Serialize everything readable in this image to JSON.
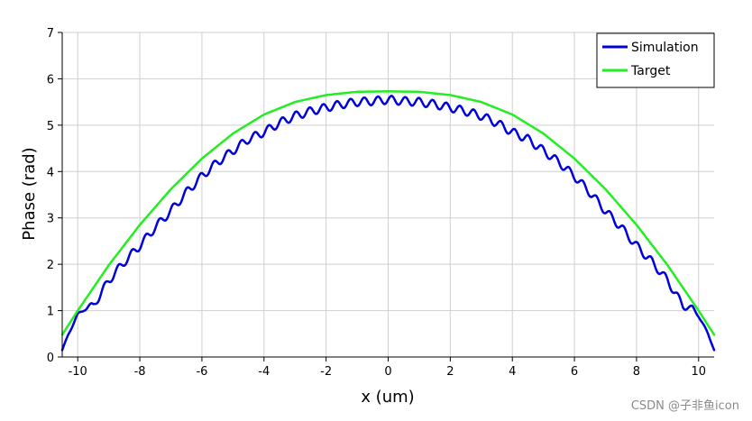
{
  "chart_data": {
    "type": "line",
    "xlabel": "x (um)",
    "ylabel": "Phase (rad)",
    "xlim": [
      -10.5,
      10.5
    ],
    "ylim": [
      0,
      7
    ],
    "xticks": [
      -10,
      -8,
      -6,
      -4,
      -2,
      0,
      2,
      4,
      6,
      8,
      10
    ],
    "yticks": [
      0,
      1,
      2,
      3,
      4,
      5,
      6,
      7
    ],
    "grid": true,
    "legend_position": "top-right",
    "series": [
      {
        "name": "Simulation",
        "color": "#0000dd",
        "x": [
          -10.5,
          -10.3,
          -10.0,
          -9.8,
          -9.5,
          -9.0,
          -8.5,
          -8.0,
          -7.5,
          -7.0,
          -6.5,
          -6.0,
          -5.5,
          -5.0,
          -4.5,
          -4.0,
          -3.5,
          -3.0,
          -2.5,
          -2.0,
          -1.5,
          -1.0,
          -0.5,
          0.0,
          0.5,
          1.0,
          1.5,
          2.0,
          2.5,
          3.0,
          3.5,
          4.0,
          4.5,
          5.0,
          5.5,
          6.0,
          6.5,
          7.0,
          7.5,
          8.0,
          8.5,
          9.0,
          9.5,
          9.8,
          10.0,
          10.3,
          10.5
        ],
        "y": [
          0.15,
          0.5,
          0.9,
          1.05,
          1.1,
          1.65,
          2.05,
          2.4,
          2.8,
          3.15,
          3.55,
          3.9,
          4.2,
          4.45,
          4.7,
          4.85,
          5.05,
          5.2,
          5.3,
          5.38,
          5.45,
          5.5,
          5.52,
          5.55,
          5.52,
          5.5,
          5.45,
          5.38,
          5.3,
          5.2,
          5.05,
          4.85,
          4.7,
          4.45,
          4.2,
          3.9,
          3.55,
          3.15,
          2.8,
          2.4,
          2.05,
          1.65,
          1.1,
          1.05,
          0.9,
          0.5,
          0.15
        ]
      },
      {
        "name": "Target",
        "color": "#22ee22",
        "x": [
          -10.5,
          -10.0,
          -9.0,
          -8.0,
          -7.0,
          -6.0,
          -5.0,
          -4.0,
          -3.0,
          -2.0,
          -1.0,
          0.0,
          1.0,
          2.0,
          3.0,
          4.0,
          5.0,
          6.0,
          7.0,
          8.0,
          9.0,
          10.0,
          10.5
        ],
        "y": [
          0.48,
          1.0,
          1.98,
          2.85,
          3.62,
          4.28,
          4.82,
          5.23,
          5.5,
          5.65,
          5.72,
          5.73,
          5.72,
          5.65,
          5.5,
          5.23,
          4.82,
          4.28,
          3.62,
          2.85,
          1.98,
          1.0,
          0.48
        ]
      }
    ]
  },
  "watermark": "CSDN @子非鱼icon"
}
